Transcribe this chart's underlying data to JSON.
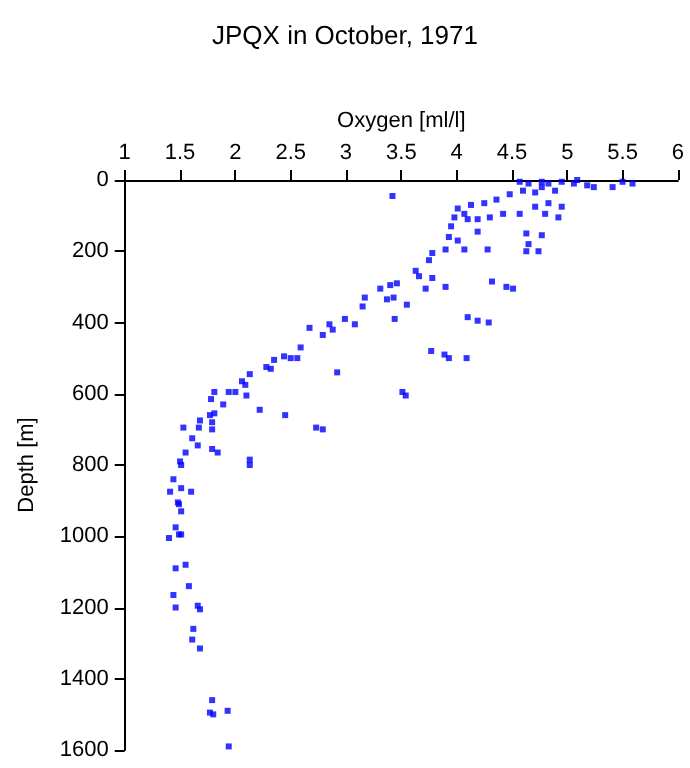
{
  "chart_data": {
    "type": "scatter",
    "title": "JPQX in October, 1971",
    "xlabel": "Oxygen [ml/l]",
    "ylabel": "Depth [m]",
    "xlim": [
      1,
      6
    ],
    "xticks": [
      1,
      1.5,
      2,
      2.5,
      3,
      3.5,
      4,
      4.5,
      5,
      5.5,
      6
    ],
    "ylim": [
      1600,
      0
    ],
    "yticks": [
      0,
      200,
      400,
      600,
      800,
      1000,
      1200,
      1400,
      1600
    ],
    "grid": false,
    "marker": "square",
    "series": [
      {
        "color": "#0000ff",
        "x": [
          3.42,
          4.57,
          4.65,
          4.77,
          4.83,
          4.95,
          5.06,
          5.18,
          5.24,
          5.09,
          4.77,
          4.89,
          4.71,
          4.6,
          5.41,
          5.5,
          5.59,
          4.48,
          4.36,
          4.25,
          4.13,
          4.01,
          4.07,
          3.98,
          4.1,
          4.19,
          4.3,
          4.42,
          4.57,
          4.71,
          4.83,
          4.95,
          4.92,
          4.8,
          4.63,
          4.65,
          4.77,
          4.63,
          4.74,
          3.95,
          3.93,
          4.01,
          3.9,
          3.78,
          3.75,
          4.07,
          4.28,
          4.19,
          3.63,
          3.66,
          3.78,
          3.72,
          3.9,
          4.32,
          4.45,
          4.51,
          3.31,
          3.4,
          3.46,
          3.37,
          3.43,
          3.55,
          3.17,
          3.15,
          3.44,
          2.99,
          3.08,
          2.85,
          2.88,
          2.67,
          2.79,
          4.1,
          4.19,
          4.29,
          2.59,
          2.44,
          2.5,
          2.56,
          2.35,
          3.77,
          3.89,
          3.93,
          4.09,
          2.32,
          2.28,
          2.13,
          2.06,
          2.09,
          1.94,
          2.0,
          2.1,
          1.81,
          1.78,
          1.89,
          1.77,
          1.81,
          1.79,
          1.68,
          1.67,
          1.53,
          1.79,
          1.61,
          1.66,
          1.79,
          1.84,
          1.55,
          1.5,
          1.51,
          2.13,
          2.13,
          1.44,
          1.51,
          1.41,
          1.6,
          1.48,
          1.49,
          1.51,
          1.46,
          1.49,
          1.4,
          1.51,
          1.55,
          1.46,
          1.58,
          1.44,
          2.92,
          2.45,
          2.22,
          2.73,
          2.79,
          3.51,
          3.54,
          1.46,
          1.66,
          1.68,
          1.62,
          1.61,
          1.68,
          1.79,
          1.77,
          1.8,
          1.93,
          1.94
        ],
        "values": [
          45,
          5,
          10,
          5,
          10,
          5,
          10,
          15,
          20,
          0,
          20,
          30,
          35,
          30,
          20,
          5,
          10,
          40,
          55,
          65,
          70,
          80,
          95,
          105,
          110,
          110,
          105,
          95,
          95,
          75,
          65,
          75,
          105,
          95,
          150,
          180,
          155,
          200,
          200,
          130,
          160,
          170,
          195,
          205,
          225,
          195,
          195,
          145,
          255,
          270,
          275,
          305,
          300,
          285,
          300,
          305,
          305,
          295,
          290,
          335,
          330,
          350,
          330,
          355,
          390,
          390,
          405,
          405,
          420,
          415,
          435,
          385,
          395,
          400,
          470,
          495,
          500,
          500,
          505,
          480,
          490,
          500,
          500,
          530,
          525,
          545,
          565,
          575,
          595,
          595,
          605,
          595,
          615,
          630,
          660,
          655,
          680,
          675,
          695,
          695,
          700,
          725,
          745,
          755,
          765,
          765,
          790,
          800,
          785,
          800,
          840,
          865,
          875,
          875,
          905,
          910,
          930,
          975,
          995,
          1005,
          995,
          1080,
          1090,
          1140,
          1165,
          540,
          660,
          645,
          695,
          700,
          595,
          605,
          1200,
          1195,
          1205,
          1260,
          1290,
          1315,
          1460,
          1495,
          1500,
          1490,
          1590
        ]
      }
    ]
  }
}
